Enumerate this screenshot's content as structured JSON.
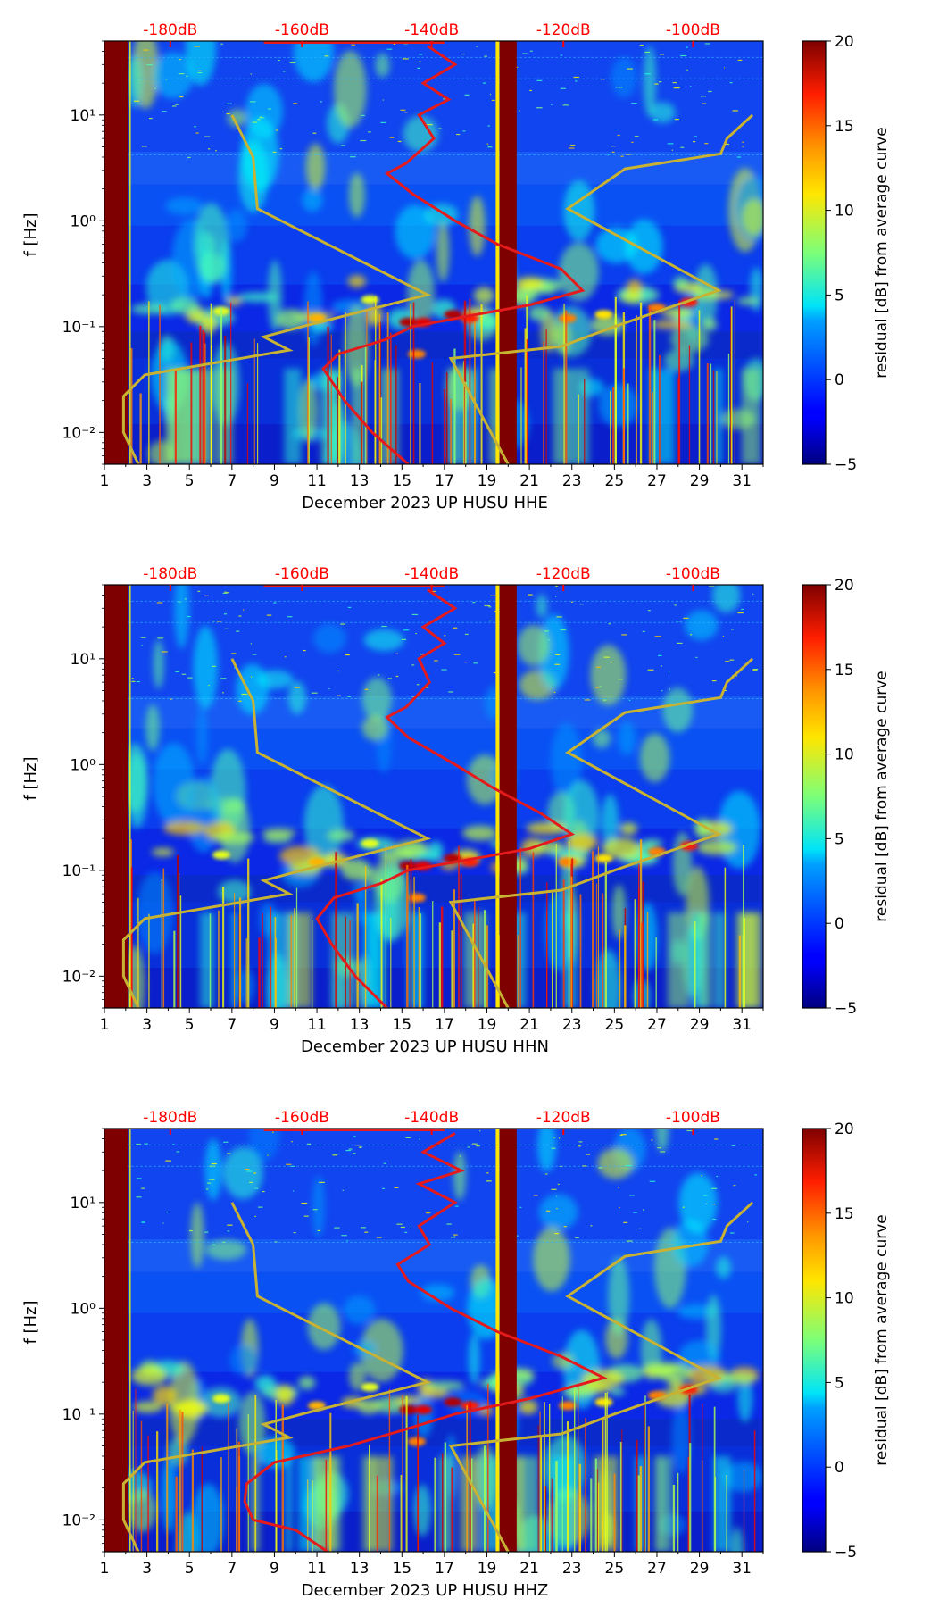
{
  "colorbar": {
    "label": "residual [dB] from average curve",
    "min": -5,
    "max": 20,
    "ticks": [
      20,
      15,
      10,
      5,
      0,
      -5
    ],
    "tick_labels": [
      "20",
      "15",
      "10",
      "5",
      "0",
      "−5"
    ]
  },
  "colors": {
    "psd_curve": "#e41a1c",
    "noise_model": "#c8b233",
    "top_axis": "#ff0000",
    "gap": "#7f0000"
  },
  "chart_data": [
    {
      "type": "heatmap",
      "station": "HHE",
      "title": "",
      "xlabel": "December 2023 UP HUSU  HHE",
      "ylabel": "f [Hz]",
      "xlim": [
        1,
        32
      ],
      "ylim": [
        0.005,
        50
      ],
      "x_ticks": [
        "1",
        "3",
        "5",
        "7",
        "9",
        "11",
        "13",
        "15",
        "17",
        "19",
        "21",
        "23",
        "25",
        "27",
        "29",
        "31"
      ],
      "y_ticks": [
        "10⁻²",
        "10⁻¹",
        "10⁰",
        "10¹"
      ],
      "top_axis_ticks": [
        "-180dB",
        "-160dB",
        "-140dB",
        "-120dB",
        "-100dB"
      ],
      "data_gaps_days": [
        [
          1,
          2.1
        ],
        [
          19.6,
          20.4
        ]
      ],
      "psd_curve_day_vs_hz": [
        [
          15.3,
          0.005
        ],
        [
          13.6,
          0.01
        ],
        [
          12.3,
          0.02
        ],
        [
          11.3,
          0.04
        ],
        [
          12.0,
          0.055
        ],
        [
          14.2,
          0.075
        ],
        [
          15.5,
          0.1
        ],
        [
          18.5,
          0.13
        ],
        [
          21,
          0.16
        ],
        [
          23.5,
          0.22
        ],
        [
          22.5,
          0.35
        ],
        [
          19.5,
          0.6
        ],
        [
          17.5,
          1.0
        ],
        [
          15.5,
          1.8
        ],
        [
          14.3,
          2.8
        ],
        [
          15.2,
          3.5
        ],
        [
          16.5,
          6
        ],
        [
          15.8,
          10
        ],
        [
          17.2,
          14
        ],
        [
          16.0,
          20
        ],
        [
          17.5,
          30
        ],
        [
          16.2,
          45
        ]
      ],
      "noise_model_low_day_vs_hz": [
        [
          2.6,
          0.005
        ],
        [
          1.9,
          0.01
        ],
        [
          1.9,
          0.022
        ],
        [
          2.9,
          0.035
        ],
        [
          9.7,
          0.06
        ],
        [
          8.5,
          0.08
        ],
        [
          10.3,
          0.1
        ],
        [
          16.2,
          0.2
        ],
        [
          8.2,
          1.3
        ],
        [
          8.0,
          4.0
        ],
        [
          7.0,
          10.0
        ]
      ],
      "noise_model_high_day_vs_hz": [
        [
          20.0,
          0.005
        ],
        [
          17.3,
          0.05
        ],
        [
          22.5,
          0.065
        ],
        [
          25.0,
          0.1
        ],
        [
          29.9,
          0.22
        ],
        [
          22.8,
          1.3
        ],
        [
          25.5,
          3.1
        ],
        [
          30.0,
          4.3
        ],
        [
          30.3,
          6
        ],
        [
          31.5,
          10.0
        ]
      ]
    },
    {
      "type": "heatmap",
      "station": "HHN",
      "title": "",
      "xlabel": "December 2023 UP HUSU  HHN",
      "ylabel": "f [Hz]",
      "xlim": [
        1,
        32
      ],
      "ylim": [
        0.005,
        50
      ],
      "x_ticks": [
        "1",
        "3",
        "5",
        "7",
        "9",
        "11",
        "13",
        "15",
        "17",
        "19",
        "21",
        "23",
        "25",
        "27",
        "29",
        "31"
      ],
      "y_ticks": [
        "10⁻²",
        "10⁻¹",
        "10⁰",
        "10¹"
      ],
      "top_axis_ticks": [
        "-180dB",
        "-160dB",
        "-140dB",
        "-120dB",
        "-100dB"
      ],
      "data_gaps_days": [
        [
          1,
          2.1
        ],
        [
          19.6,
          20.4
        ]
      ],
      "psd_curve_day_vs_hz": [
        [
          14.3,
          0.005
        ],
        [
          12.8,
          0.01
        ],
        [
          11.7,
          0.02
        ],
        [
          11.0,
          0.035
        ],
        [
          11.8,
          0.055
        ],
        [
          14.0,
          0.075
        ],
        [
          15.3,
          0.1
        ],
        [
          18.5,
          0.13
        ],
        [
          21,
          0.16
        ],
        [
          23.0,
          0.22
        ],
        [
          21.5,
          0.35
        ],
        [
          19.3,
          0.6
        ],
        [
          17.5,
          1.0
        ],
        [
          15.3,
          1.8
        ],
        [
          14.3,
          2.8
        ],
        [
          15.2,
          3.5
        ],
        [
          16.3,
          6
        ],
        [
          15.8,
          10
        ],
        [
          17.0,
          14
        ],
        [
          16.0,
          20
        ],
        [
          17.5,
          30
        ],
        [
          16.2,
          45
        ]
      ],
      "noise_model_low_day_vs_hz": [
        [
          2.6,
          0.005
        ],
        [
          1.9,
          0.01
        ],
        [
          1.9,
          0.022
        ],
        [
          2.9,
          0.035
        ],
        [
          9.7,
          0.06
        ],
        [
          8.5,
          0.08
        ],
        [
          10.3,
          0.1
        ],
        [
          16.2,
          0.2
        ],
        [
          8.2,
          1.3
        ],
        [
          8.0,
          4.0
        ],
        [
          7.0,
          10.0
        ]
      ],
      "noise_model_high_day_vs_hz": [
        [
          20.0,
          0.005
        ],
        [
          17.3,
          0.05
        ],
        [
          22.5,
          0.065
        ],
        [
          25.0,
          0.1
        ],
        [
          29.9,
          0.22
        ],
        [
          22.8,
          1.3
        ],
        [
          25.5,
          3.1
        ],
        [
          30.0,
          4.3
        ],
        [
          30.3,
          6
        ],
        [
          31.5,
          10.0
        ]
      ]
    },
    {
      "type": "heatmap",
      "station": "HHZ",
      "title": "",
      "xlabel": "December 2023 UP HUSU  HHZ",
      "ylabel": "f [Hz]",
      "xlim": [
        1,
        32
      ],
      "ylim": [
        0.005,
        50
      ],
      "x_ticks": [
        "1",
        "3",
        "5",
        "7",
        "9",
        "11",
        "13",
        "15",
        "17",
        "19",
        "21",
        "23",
        "25",
        "27",
        "29",
        "31"
      ],
      "y_ticks": [
        "10⁻²",
        "10⁻¹",
        "10⁰",
        "10¹"
      ],
      "top_axis_ticks": [
        "-180dB",
        "-160dB",
        "-140dB",
        "-120dB",
        "-100dB"
      ],
      "data_gaps_days": [
        [
          1,
          2.1
        ],
        [
          19.6,
          20.4
        ]
      ],
      "psd_curve_day_vs_hz": [
        [
          11.5,
          0.005
        ],
        [
          10.0,
          0.008
        ],
        [
          8.0,
          0.01
        ],
        [
          7.6,
          0.015
        ],
        [
          7.7,
          0.022
        ],
        [
          9.0,
          0.035
        ],
        [
          12.5,
          0.05
        ],
        [
          15.0,
          0.07
        ],
        [
          17.5,
          0.1
        ],
        [
          21,
          0.14
        ],
        [
          24.5,
          0.22
        ],
        [
          22.5,
          0.35
        ],
        [
          19.5,
          0.6
        ],
        [
          17.3,
          1.0
        ],
        [
          15.3,
          1.8
        ],
        [
          14.8,
          2.6
        ],
        [
          16.3,
          4
        ],
        [
          15.8,
          6
        ],
        [
          17.5,
          10
        ],
        [
          15.8,
          15
        ],
        [
          17.8,
          20
        ],
        [
          16.0,
          30
        ],
        [
          17.5,
          45
        ]
      ],
      "noise_model_low_day_vs_hz": [
        [
          2.6,
          0.005
        ],
        [
          1.9,
          0.01
        ],
        [
          1.9,
          0.022
        ],
        [
          2.9,
          0.035
        ],
        [
          9.7,
          0.06
        ],
        [
          8.5,
          0.08
        ],
        [
          10.3,
          0.1
        ],
        [
          16.2,
          0.2
        ],
        [
          8.2,
          1.3
        ],
        [
          8.0,
          4.0
        ],
        [
          7.0,
          10.0
        ]
      ],
      "noise_model_high_day_vs_hz": [
        [
          20.0,
          0.005
        ],
        [
          17.3,
          0.05
        ],
        [
          22.5,
          0.065
        ],
        [
          25.0,
          0.1
        ],
        [
          29.9,
          0.22
        ],
        [
          22.8,
          1.3
        ],
        [
          25.5,
          3.1
        ],
        [
          30.0,
          4.3
        ],
        [
          30.3,
          6
        ],
        [
          31.5,
          10.0
        ]
      ]
    }
  ]
}
